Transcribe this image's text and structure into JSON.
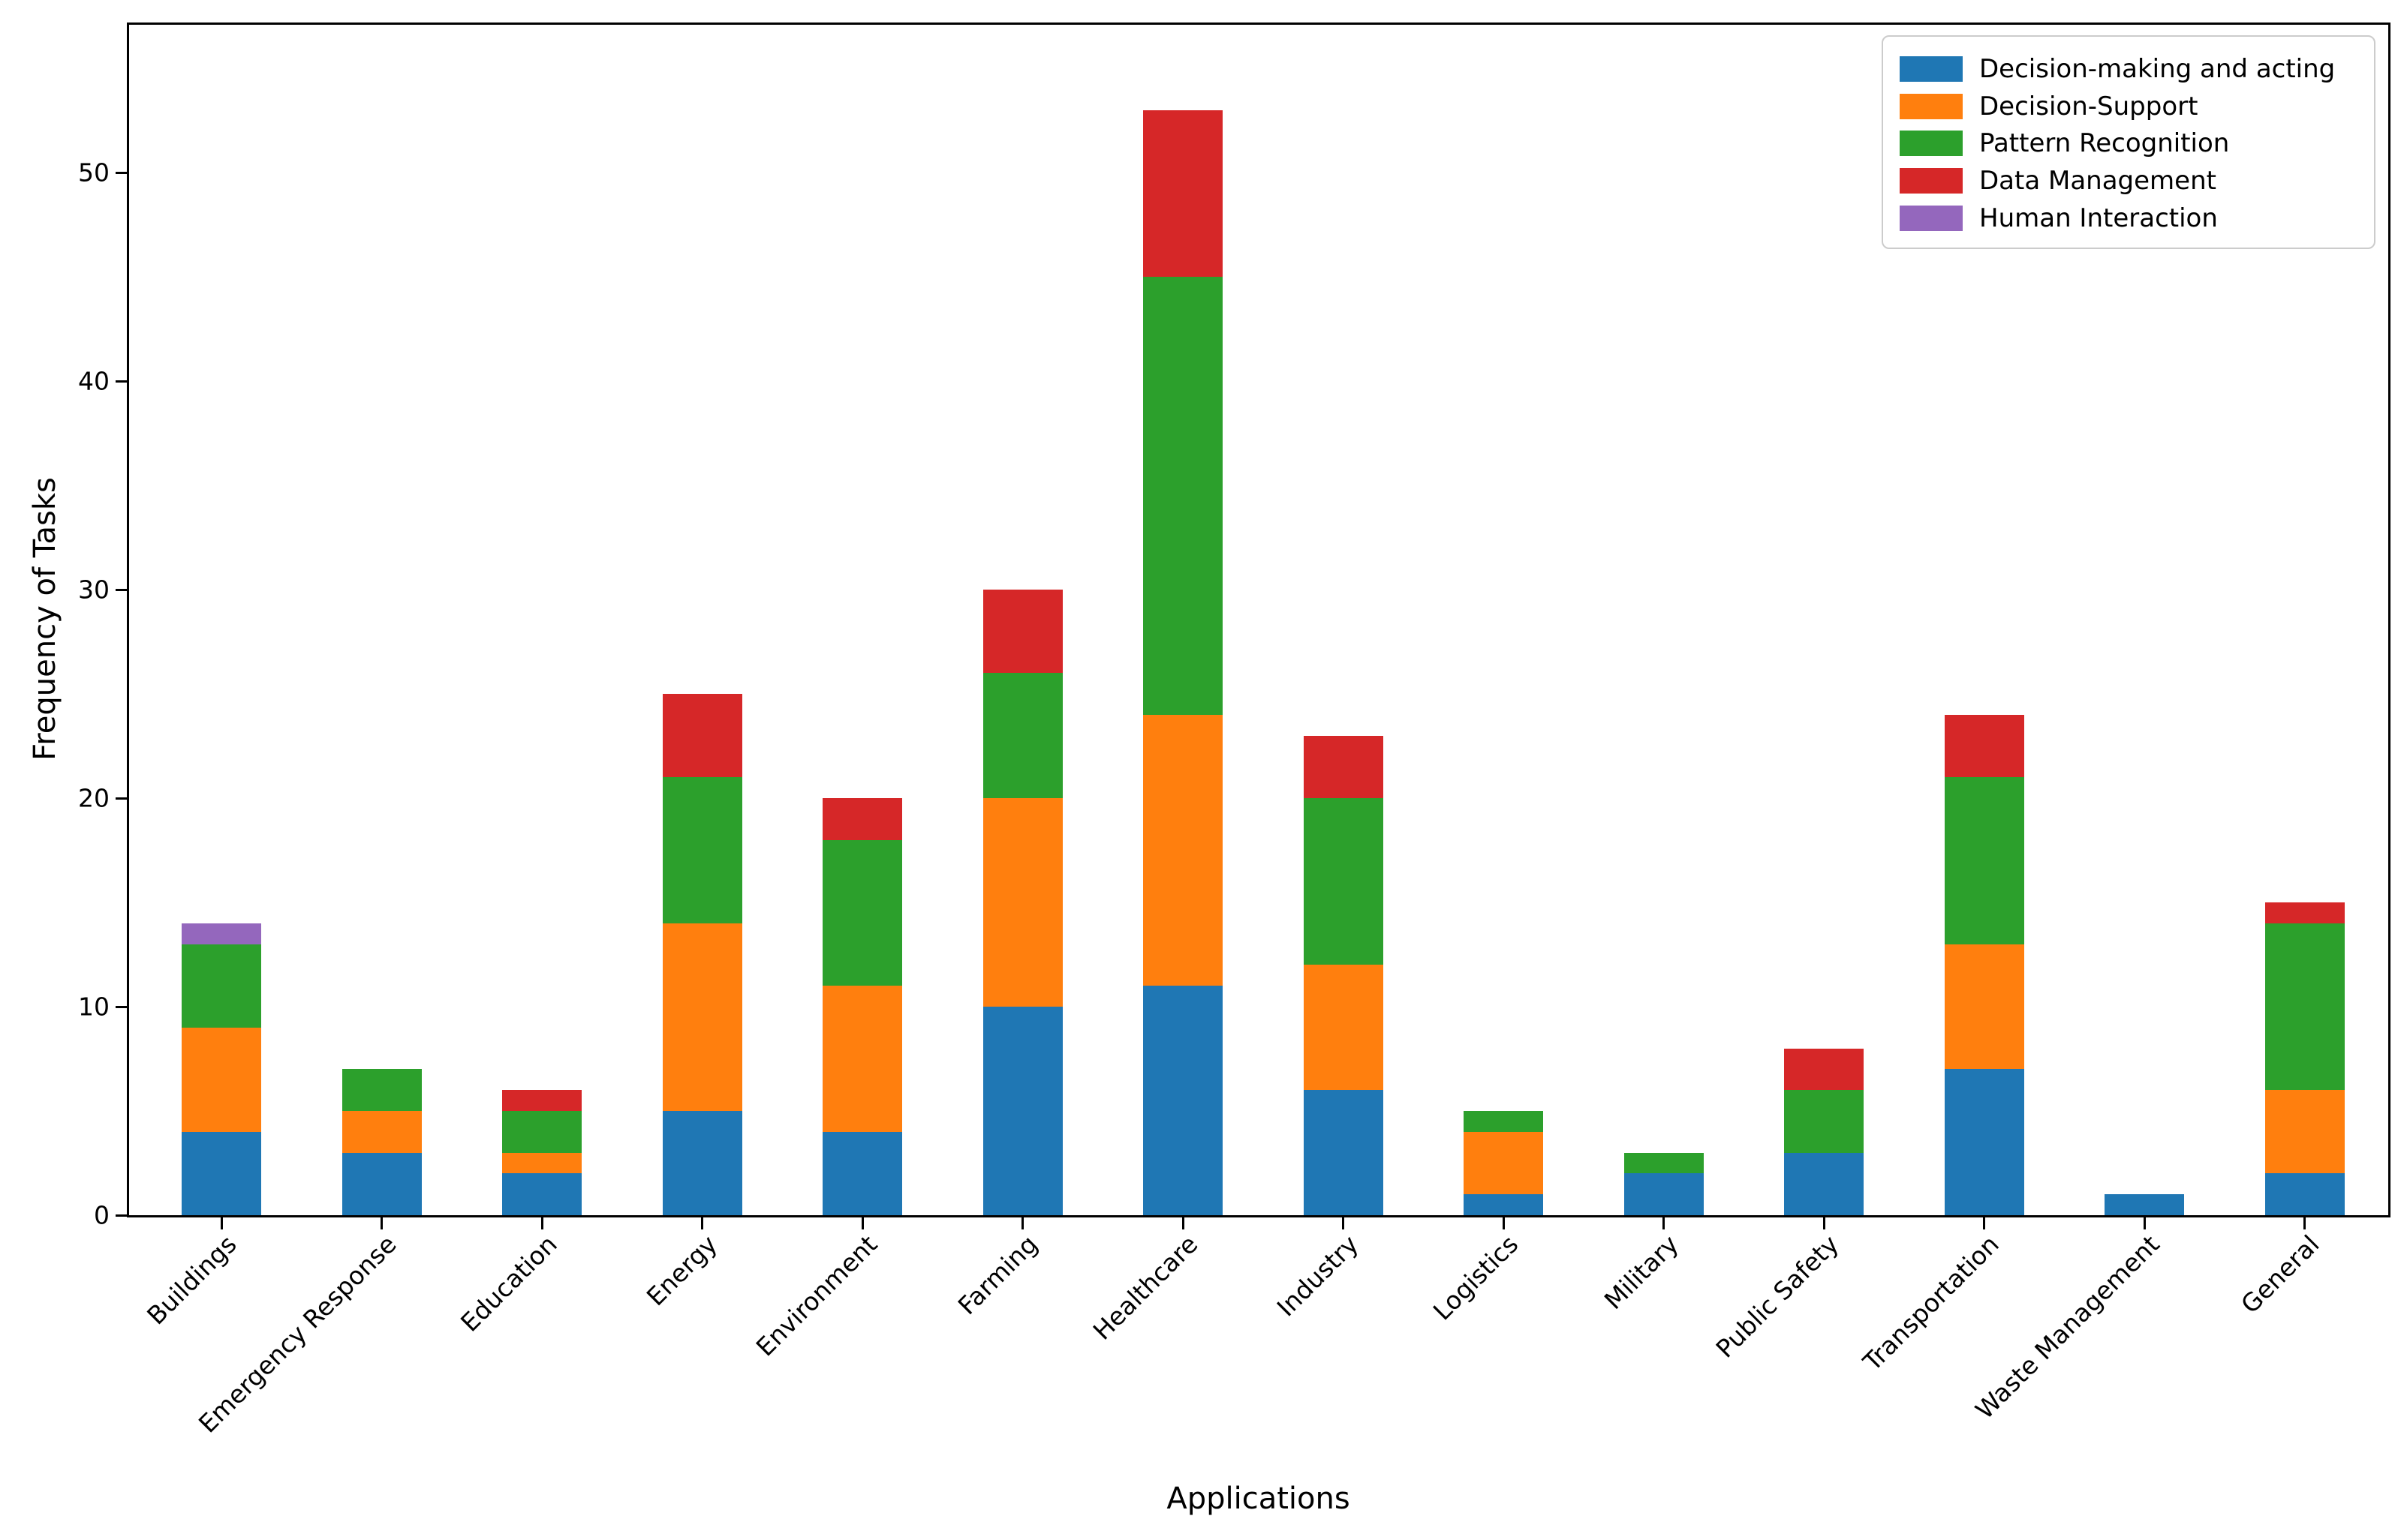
{
  "chart_data": {
    "type": "bar",
    "stacked": true,
    "title": "",
    "xlabel": "Applications",
    "ylabel": "Frequency of Tasks",
    "categories": [
      "Buildings",
      "Emergency Response",
      "Education",
      "Energy",
      "Environment",
      "Farming",
      "Healthcare",
      "Industry",
      "Logistics",
      "Military",
      "Public Safety",
      "Transportation",
      "Waste Management",
      "General"
    ],
    "series": [
      {
        "name": "Decision-making and acting",
        "color": "#1f77b4",
        "values": [
          4,
          3,
          2,
          5,
          4,
          10,
          11,
          6,
          1,
          2,
          3,
          7,
          1,
          2
        ]
      },
      {
        "name": "Decision-Support",
        "color": "#ff7f0e",
        "values": [
          5,
          2,
          1,
          9,
          7,
          10,
          13,
          6,
          3,
          0,
          0,
          6,
          0,
          4
        ]
      },
      {
        "name": "Pattern Recognition",
        "color": "#2ca02c",
        "values": [
          4,
          2,
          2,
          7,
          7,
          6,
          21,
          8,
          1,
          1,
          3,
          8,
          0,
          8
        ]
      },
      {
        "name": "Data Management",
        "color": "#d62728",
        "values": [
          0,
          0,
          1,
          4,
          2,
          4,
          8,
          3,
          0,
          0,
          2,
          3,
          0,
          1
        ]
      },
      {
        "name": "Human Interaction",
        "color": "#9467bd",
        "values": [
          1,
          0,
          0,
          0,
          0,
          0,
          0,
          0,
          0,
          0,
          0,
          0,
          0,
          0
        ]
      }
    ],
    "totals": [
      14,
      7,
      6,
      25,
      20,
      30,
      53,
      23,
      5,
      3,
      8,
      24,
      1,
      15
    ],
    "y_ticks": [
      0,
      10,
      20,
      30,
      40,
      50
    ],
    "ylim": [
      0,
      57.2
    ],
    "xlim_pad_units": 0.585,
    "grid": false,
    "legend_position": "upper right",
    "axis_color": "#000000",
    "background_color": "#ffffff"
  }
}
